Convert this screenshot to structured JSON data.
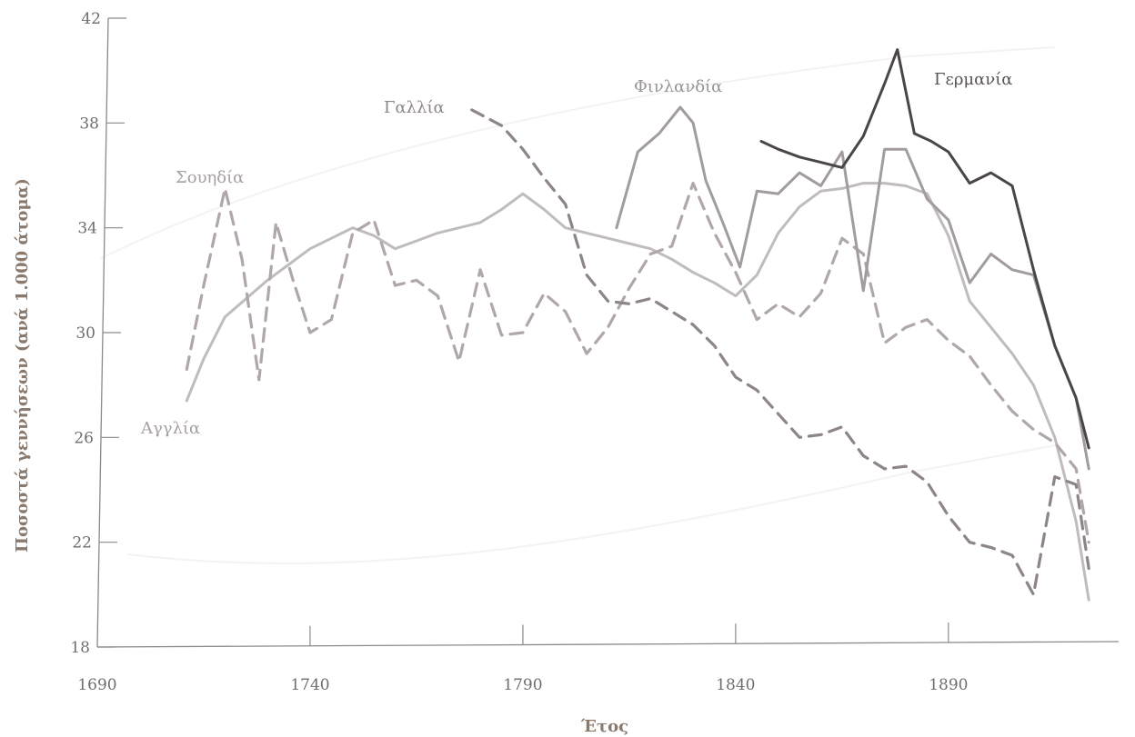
{
  "chart_data": {
    "type": "line",
    "xlabel": "Έτος",
    "ylabel": "Ποσοστά γεννήσεων (ανά 1.000 άτομα)",
    "xlim": [
      1690,
      1930
    ],
    "ylim": [
      18,
      42
    ],
    "x_ticks": [
      1690,
      1740,
      1790,
      1840,
      1890
    ],
    "y_ticks": [
      18,
      22,
      26,
      30,
      34,
      38,
      42
    ],
    "grid": false,
    "series": [
      {
        "name": "Αγγλία",
        "style": "solid",
        "color": "#c0bcbc",
        "x": [
          1711,
          1715,
          1720,
          1725,
          1730,
          1735,
          1740,
          1745,
          1750,
          1755,
          1760,
          1765,
          1770,
          1775,
          1780,
          1785,
          1790,
          1795,
          1800,
          1805,
          1810,
          1815,
          1820,
          1825,
          1830,
          1835,
          1840,
          1845,
          1850,
          1855,
          1860,
          1865,
          1870,
          1875,
          1880,
          1885,
          1890,
          1895,
          1900,
          1905,
          1910,
          1915,
          1920,
          1923
        ],
        "y": [
          27.4,
          29.0,
          30.6,
          31.3,
          32.0,
          32.6,
          33.2,
          33.6,
          34.0,
          33.7,
          33.2,
          33.5,
          33.8,
          34.0,
          34.2,
          34.7,
          35.3,
          34.7,
          34.0,
          33.8,
          33.6,
          33.4,
          33.2,
          32.8,
          32.3,
          31.9,
          31.4,
          32.2,
          33.8,
          34.8,
          35.4,
          35.5,
          35.7,
          35.7,
          35.6,
          35.3,
          33.7,
          31.2,
          30.2,
          29.2,
          28.0,
          26.0,
          22.8,
          19.8
        ]
      },
      {
        "name": "Σουηδία",
        "style": "dashed",
        "color": "#b0a8a8",
        "x": [
          1711,
          1715,
          1720,
          1724,
          1728,
          1732,
          1736,
          1740,
          1745,
          1750,
          1755,
          1760,
          1765,
          1770,
          1775,
          1780,
          1785,
          1790,
          1795,
          1800,
          1805,
          1810,
          1815,
          1820,
          1825,
          1830,
          1835,
          1840,
          1845,
          1850,
          1855,
          1860,
          1865,
          1870,
          1875,
          1880,
          1885,
          1890,
          1895,
          1900,
          1905,
          1910,
          1915,
          1920,
          1923
        ],
        "y": [
          28.6,
          31.8,
          35.5,
          32.8,
          28.2,
          34.2,
          32.0,
          30.0,
          30.5,
          33.8,
          34.3,
          31.8,
          32.0,
          31.4,
          28.9,
          32.4,
          29.9,
          30.0,
          31.5,
          30.8,
          29.2,
          30.2,
          31.7,
          33.0,
          33.3,
          35.7,
          33.8,
          32.3,
          30.5,
          31.1,
          30.6,
          31.5,
          33.6,
          33.0,
          29.6,
          30.2,
          30.5,
          29.7,
          29.1,
          28.0,
          27.0,
          26.3,
          25.8,
          24.8,
          22.0
        ]
      },
      {
        "name": "Γαλλία",
        "style": "dashed",
        "color": "#8e8686",
        "x": [
          1778,
          1785,
          1790,
          1795,
          1800,
          1805,
          1810,
          1815,
          1820,
          1825,
          1830,
          1835,
          1840,
          1845,
          1850,
          1855,
          1860,
          1865,
          1870,
          1875,
          1880,
          1885,
          1890,
          1895,
          1900,
          1905,
          1910,
          1915,
          1920,
          1923
        ],
        "y": [
          38.5,
          37.9,
          37.0,
          35.9,
          34.9,
          32.2,
          31.2,
          31.1,
          31.3,
          30.8,
          30.3,
          29.5,
          28.3,
          27.8,
          26.9,
          26.0,
          26.1,
          26.4,
          25.3,
          24.8,
          24.9,
          24.3,
          23.0,
          22.0,
          21.8,
          21.5,
          20.0,
          24.5,
          24.2,
          21.0
        ]
      },
      {
        "name": "Φινλανδία",
        "style": "solid",
        "color": "#a29c9c",
        "x": [
          1812,
          1817,
          1822,
          1827,
          1830,
          1833,
          1837,
          1841,
          1845,
          1850,
          1855,
          1860,
          1865,
          1870,
          1875,
          1880,
          1885,
          1890,
          1895,
          1900,
          1905,
          1910,
          1915,
          1920,
          1923
        ],
        "y": [
          34.0,
          36.9,
          37.6,
          38.6,
          38.0,
          35.8,
          34.2,
          32.5,
          35.4,
          35.3,
          36.1,
          35.6,
          36.9,
          31.6,
          37.0,
          37.0,
          35.1,
          34.3,
          31.9,
          33.0,
          32.4,
          32.2,
          29.5,
          27.5,
          24.8
        ]
      },
      {
        "name": "Γερμανία",
        "style": "solid",
        "color": "#4a4646",
        "x": [
          1846,
          1850,
          1855,
          1860,
          1865,
          1870,
          1875,
          1878,
          1882,
          1886,
          1890,
          1895,
          1900,
          1905,
          1910,
          1915,
          1920,
          1923
        ],
        "y": [
          37.3,
          37.0,
          36.7,
          36.5,
          36.3,
          37.5,
          39.5,
          40.8,
          37.6,
          37.3,
          36.9,
          35.7,
          36.1,
          35.6,
          32.4,
          29.5,
          27.5,
          25.6
        ]
      }
    ]
  }
}
